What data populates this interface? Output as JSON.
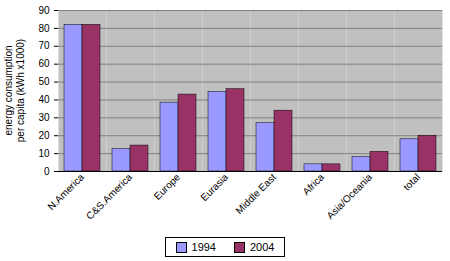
{
  "chart_data": {
    "type": "bar",
    "y_label": "energy consumption\nper capita (kWh x1000)",
    "categories": [
      "N.America",
      "C&S.America",
      "Europe",
      "Eurasia",
      "Middle East",
      "Africa",
      "Asia/Oceania",
      "total"
    ],
    "series": [
      {
        "name": "1994",
        "color": "#9999ff",
        "values": [
          82,
          12.5,
          38.5,
          44.5,
          27,
          4,
          8,
          18
        ]
      },
      {
        "name": "2004",
        "color": "#993366",
        "values": [
          82,
          14.5,
          43,
          46,
          34,
          4,
          11,
          20
        ]
      }
    ],
    "ylim": [
      0,
      90
    ],
    "yticks": [
      0,
      10,
      20,
      30,
      40,
      50,
      60,
      70,
      80,
      90
    ],
    "grid": true,
    "legend": "bottom"
  }
}
